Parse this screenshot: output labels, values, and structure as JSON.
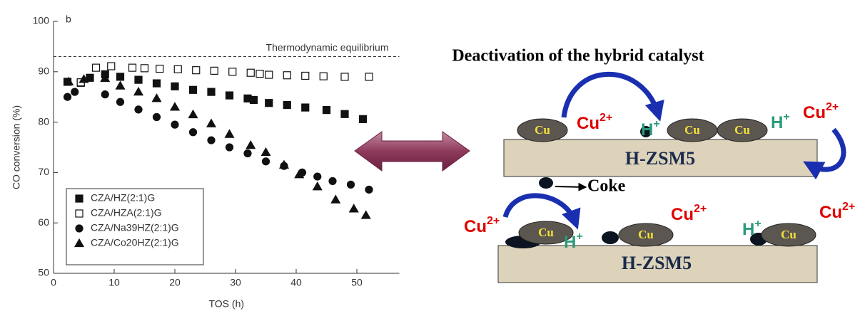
{
  "chart_data": {
    "type": "scatter",
    "panel_label": "b",
    "x_label": "TOS (h)",
    "y_label": "CO conversion (%)",
    "xlim": [
      0,
      57
    ],
    "ylim": [
      50,
      100
    ],
    "xticks": [
      0,
      10,
      20,
      30,
      40,
      50
    ],
    "yticks": [
      50,
      60,
      70,
      80,
      90,
      100
    ],
    "reference_line": {
      "label": "Thermodynamic equilibrium",
      "value": 93
    },
    "legend": "lower left",
    "series": [
      {
        "name": "CZA/HZ(2:1)G",
        "color": "#111111",
        "marker": "square",
        "filled": true,
        "x": [
          2.3,
          4.5,
          6,
          8.5,
          11,
          14,
          17,
          20,
          23,
          26,
          29,
          32,
          33,
          35.5,
          38.5,
          41.5,
          45,
          48,
          51
        ],
        "values": [
          88,
          87.8,
          88.8,
          89.5,
          89,
          88.4,
          87.7,
          87.1,
          86.4,
          86,
          85.3,
          84.7,
          84.4,
          83.8,
          83.4,
          82.9,
          82.4,
          81.6,
          80.6
        ]
      },
      {
        "name": "CZA/HZA(2:1)G",
        "color": "#111111",
        "marker": "square",
        "filled": false,
        "x": [
          4.5,
          7,
          9.5,
          13,
          15,
          17.5,
          20.5,
          23.5,
          26.5,
          29.5,
          32.5,
          34,
          35.5,
          38.5,
          41.5,
          44.5,
          48,
          52
        ],
        "values": [
          87.9,
          90.8,
          91.1,
          90.8,
          90.7,
          90.6,
          90.5,
          90.3,
          90.2,
          90,
          89.8,
          89.6,
          89.4,
          89.3,
          89.2,
          89.1,
          89,
          89
        ]
      },
      {
        "name": "CZA/Na39HZ(2:1)G",
        "color": "#111111",
        "marker": "circle",
        "filled": true,
        "x": [
          2.3,
          3.5,
          8.5,
          11,
          14,
          17,
          20,
          23,
          26,
          29,
          32,
          35,
          38,
          41,
          43.5,
          46,
          49,
          52
        ],
        "values": [
          85,
          86,
          85.5,
          84,
          82.5,
          81,
          79.5,
          78,
          76.4,
          75,
          73.8,
          72.2,
          71.3,
          70,
          69.2,
          68.3,
          67.6,
          66.6
        ]
      },
      {
        "name": "CZA/Co20HZ(2:1)G",
        "color": "#111111",
        "marker": "triangle",
        "filled": true,
        "x": [
          2.5,
          5,
          8.5,
          11,
          14,
          17,
          20,
          23,
          26,
          29,
          32.5,
          35,
          38,
          40.5,
          43.5,
          46.5,
          49.5,
          51.5
        ],
        "values": [
          88,
          88.5,
          88.7,
          87.2,
          86,
          84.7,
          83,
          81.5,
          79.7,
          77.6,
          75.4,
          74,
          71.5,
          69.6,
          67.2,
          64.6,
          62.8,
          61.5
        ]
      }
    ]
  },
  "diagram": {
    "title": "Deactivation of the hybrid catalyst",
    "supports": [
      "H-ZSM5",
      "H-ZSM5"
    ],
    "particles": [
      "Cu",
      "Cu",
      "Cu",
      "Cu",
      "Cu",
      "Cu"
    ],
    "ions": [
      {
        "text": "Cu",
        "sup": "2+"
      },
      {
        "text": "H",
        "sup": "+"
      },
      {
        "text": "H",
        "sup": "+"
      },
      {
        "text": "Cu",
        "sup": "2+"
      },
      {
        "text": "Cu",
        "sup": "2+"
      },
      {
        "text": "H",
        "sup": "+"
      },
      {
        "text": "Cu",
        "sup": "2+"
      },
      {
        "text": "H",
        "sup": "+"
      },
      {
        "text": "Cu",
        "sup": "2+"
      }
    ],
    "coke_label": "Coke"
  }
}
